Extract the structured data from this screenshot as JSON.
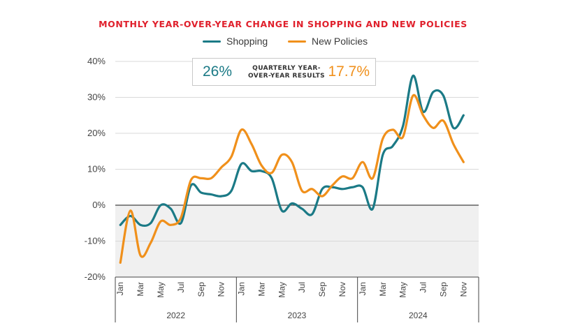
{
  "chart_data": {
    "type": "line",
    "title": "MONTHLY YEAR-OVER-YEAR CHANGE IN SHOPPING AND NEW POLICIES",
    "ylim": [
      -20,
      40
    ],
    "yticks": [
      "40%",
      "30%",
      "20%",
      "10%",
      "0%",
      "-10%",
      "-20%"
    ],
    "ytick_values": [
      40,
      30,
      20,
      10,
      0,
      -10,
      -20
    ],
    "month_labels": [
      "Jan",
      "",
      "Mar",
      "",
      "May",
      "",
      "Jul",
      "",
      "Sep",
      "",
      "Nov",
      "",
      "Jan",
      "",
      "Mar",
      "",
      "May",
      "",
      "Jul",
      "",
      "Sep",
      "",
      "Nov",
      "",
      "Jan",
      "",
      "Mar",
      "",
      "May",
      "",
      "Jul",
      "",
      "Sep",
      "",
      "Nov",
      ""
    ],
    "years": [
      "2022",
      "2023",
      "2024"
    ],
    "legend": [
      "Shopping",
      "New Policies"
    ],
    "colors": {
      "shopping": "#1b7a86",
      "policies": "#f0901b",
      "shade": "#f0f0f0",
      "title": "#e0202c"
    },
    "series": [
      {
        "name": "Shopping",
        "values": [
          -5.5,
          -3,
          -5.5,
          -5,
          0,
          -1,
          -5,
          5.5,
          3.5,
          3,
          2.5,
          4,
          11.5,
          9.5,
          9.5,
          7.5,
          -1.5,
          0.5,
          -1,
          -2.5,
          4.5,
          5,
          4.5,
          5,
          5,
          -1,
          14,
          16.5,
          22,
          36,
          26,
          31.5,
          30.5,
          21.5,
          25
        ]
      },
      {
        "name": "New Policies",
        "values": [
          -16,
          -1.5,
          -14,
          -10.5,
          -4.5,
          -5.5,
          -3.5,
          7,
          7.5,
          7.5,
          10.5,
          13.5,
          21,
          17,
          11,
          9,
          14,
          12,
          4,
          4.5,
          2.5,
          5.5,
          8,
          7.5,
          12,
          7.5,
          18.5,
          21,
          19,
          30.5,
          25,
          21.5,
          23.5,
          17,
          12
        ]
      }
    ]
  },
  "callout": {
    "shopping_value": "26%",
    "text": "QUARTERLY YEAR-OVER-YEAR RESULTS",
    "policies_value": "17.7%"
  }
}
